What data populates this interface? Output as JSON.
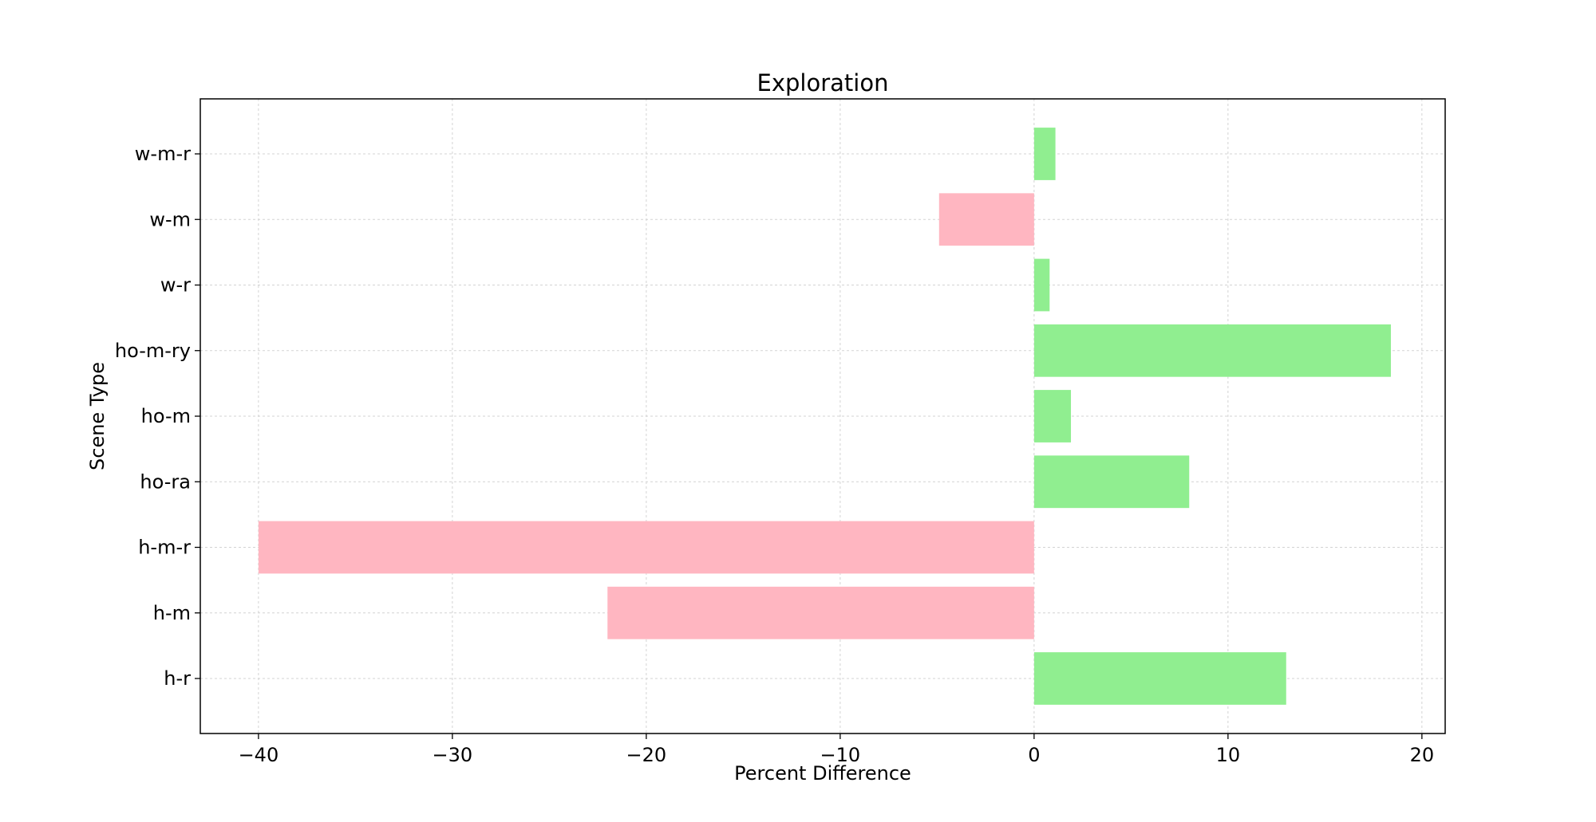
{
  "chart_data": {
    "type": "bar",
    "orientation": "horizontal",
    "title": "Exploration",
    "xlabel": "Percent Difference",
    "ylabel": "Scene Type",
    "categories": [
      "h-r",
      "h-m",
      "h-m-r",
      "ho-ra",
      "ho-m",
      "ho-m-ry",
      "w-r",
      "w-m",
      "w-m-r"
    ],
    "values": [
      13.0,
      -22.0,
      -40.0,
      8.0,
      1.9,
      18.4,
      0.8,
      -4.9,
      1.1
    ],
    "xlim": [
      -43.0,
      21.2
    ],
    "xticks": [
      -40,
      -30,
      -20,
      -10,
      0,
      10,
      20
    ],
    "xtick_labels": [
      "−40",
      "−30",
      "−20",
      "−10",
      "0",
      "10",
      "20"
    ],
    "grid": true,
    "colors": {
      "positive": "#90ee90",
      "negative": "#ffb6c1",
      "grid": "#d3d3d3",
      "axes": "#000000"
    }
  }
}
